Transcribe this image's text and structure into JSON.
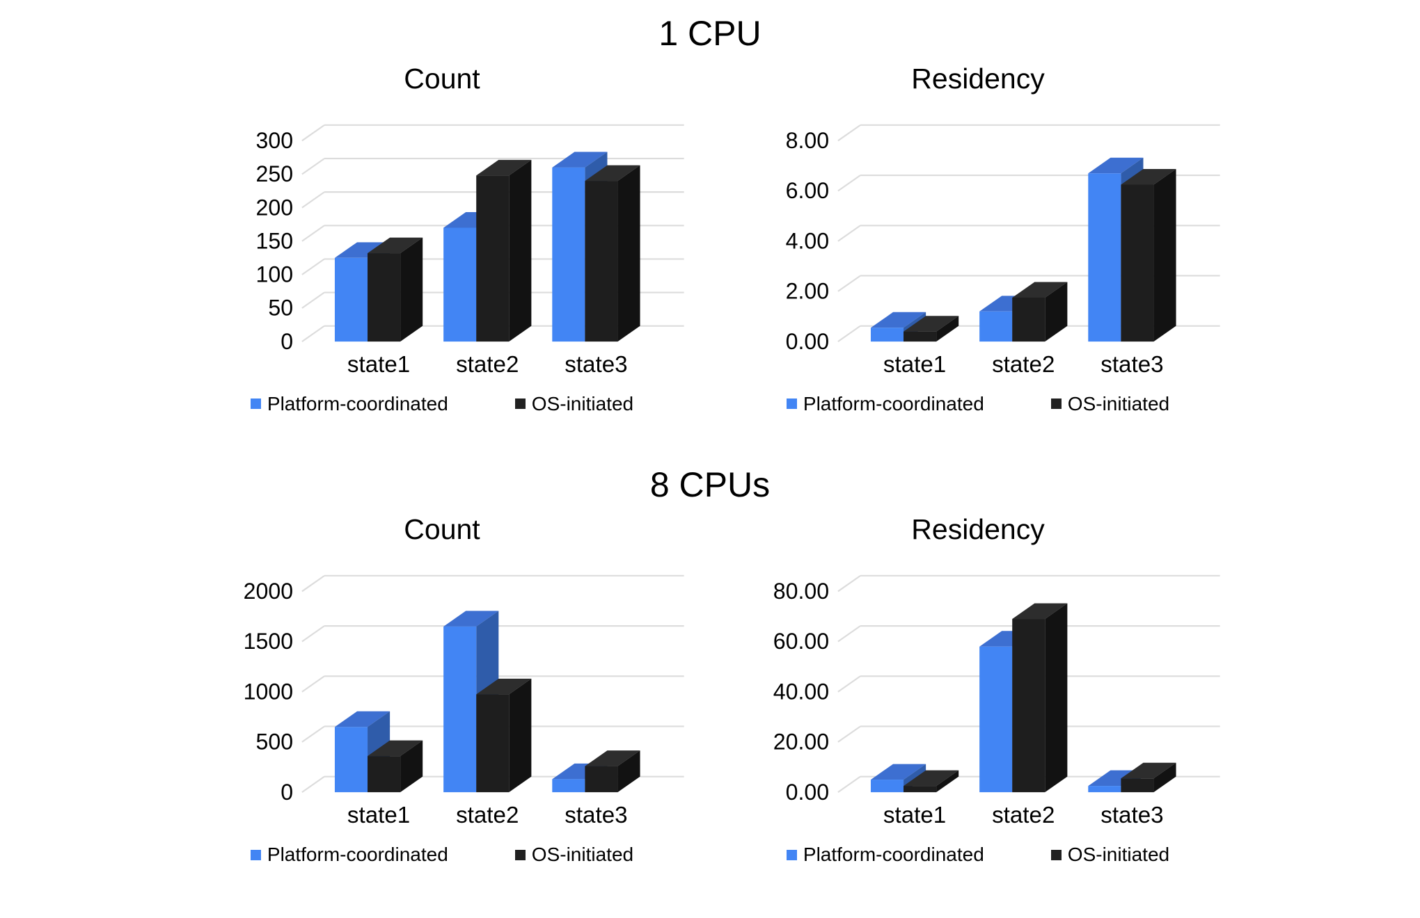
{
  "figure": {
    "background": "#ffffff"
  },
  "colors": {
    "text": "#000000",
    "gridline": "#dcdcdc",
    "platform_blue": "#4285f4",
    "os_black": "#1e1e1e"
  },
  "legend": {
    "items": [
      {
        "label": "Platform-coordinated",
        "color": "#4285f4"
      },
      {
        "label": "OS-initiated",
        "color": "#212121"
      }
    ]
  },
  "sections": [
    {
      "title": "1 CPU"
    },
    {
      "title": "8 CPUs"
    }
  ],
  "chart_data": [
    {
      "type": "bar",
      "style": "3d-column",
      "section": "1 CPU",
      "title": "Count",
      "categories": [
        "state1",
        "state2",
        "state3"
      ],
      "series": [
        {
          "name": "Platform-coordinated",
          "values": [
            125,
            170,
            260
          ],
          "color_front": "#4285f4",
          "color_top": "#3d6fd1",
          "color_side": "#2f5caa"
        },
        {
          "name": "OS-initiated",
          "values": [
            132,
            248,
            240
          ],
          "color_front": "#1e1e1e",
          "color_top": "#2d2d2d",
          "color_side": "#121212"
        }
      ],
      "ylim": [
        0,
        300
      ],
      "ytick_values": [
        0,
        50,
        100,
        150,
        200,
        250,
        300
      ],
      "ytick_labels": [
        "0",
        "50",
        "100",
        "150",
        "200",
        "250",
        "300"
      ],
      "grid": true,
      "legend_position": "bottom"
    },
    {
      "type": "bar",
      "style": "3d-column",
      "section": "1 CPU",
      "title": "Residency",
      "categories": [
        "state1",
        "state2",
        "state3"
      ],
      "series": [
        {
          "name": "Platform-coordinated",
          "values": [
            0.55,
            1.2,
            6.7
          ],
          "color_front": "#4285f4",
          "color_top": "#3d6fd1",
          "color_side": "#2f5caa"
        },
        {
          "name": "OS-initiated",
          "values": [
            0.4,
            1.75,
            6.25
          ],
          "color_front": "#1e1e1e",
          "color_top": "#2d2d2d",
          "color_side": "#121212"
        }
      ],
      "ylim": [
        0,
        8
      ],
      "ytick_values": [
        0,
        2,
        4,
        6,
        8
      ],
      "ytick_labels": [
        "0.00",
        "2.00",
        "4.00",
        "6.00",
        "8.00"
      ],
      "grid": true,
      "legend_position": "bottom"
    },
    {
      "type": "bar",
      "style": "3d-column",
      "section": "8 CPUs",
      "title": "Count",
      "categories": [
        "state1",
        "state2",
        "state3"
      ],
      "series": [
        {
          "name": "Platform-coordinated",
          "values": [
            650,
            1650,
            130
          ],
          "color_front": "#4285f4",
          "color_top": "#3d6fd1",
          "color_side": "#2f5caa"
        },
        {
          "name": "OS-initiated",
          "values": [
            360,
            975,
            260
          ],
          "color_front": "#1e1e1e",
          "color_top": "#2d2d2d",
          "color_side": "#121212"
        }
      ],
      "ylim": [
        0,
        2000
      ],
      "ytick_values": [
        0,
        500,
        1000,
        1500,
        2000
      ],
      "ytick_labels": [
        "0",
        "500",
        "1000",
        "1500",
        "2000"
      ],
      "grid": true,
      "legend_position": "bottom"
    },
    {
      "type": "bar",
      "style": "3d-column",
      "section": "8 CPUs",
      "title": "Residency",
      "categories": [
        "state1",
        "state2",
        "state3"
      ],
      "series": [
        {
          "name": "Platform-coordinated",
          "values": [
            5,
            58,
            2.5
          ],
          "color_front": "#4285f4",
          "color_top": "#3d6fd1",
          "color_side": "#2f5caa"
        },
        {
          "name": "OS-initiated",
          "values": [
            2.5,
            69,
            5.5
          ],
          "color_front": "#1e1e1e",
          "color_top": "#2d2d2d",
          "color_side": "#121212"
        }
      ],
      "ylim": [
        0,
        80
      ],
      "ytick_values": [
        0,
        20,
        40,
        60,
        80
      ],
      "ytick_labels": [
        "0.00",
        "20.00",
        "40.00",
        "60.00",
        "80.00"
      ],
      "grid": true,
      "legend_position": "bottom"
    }
  ]
}
